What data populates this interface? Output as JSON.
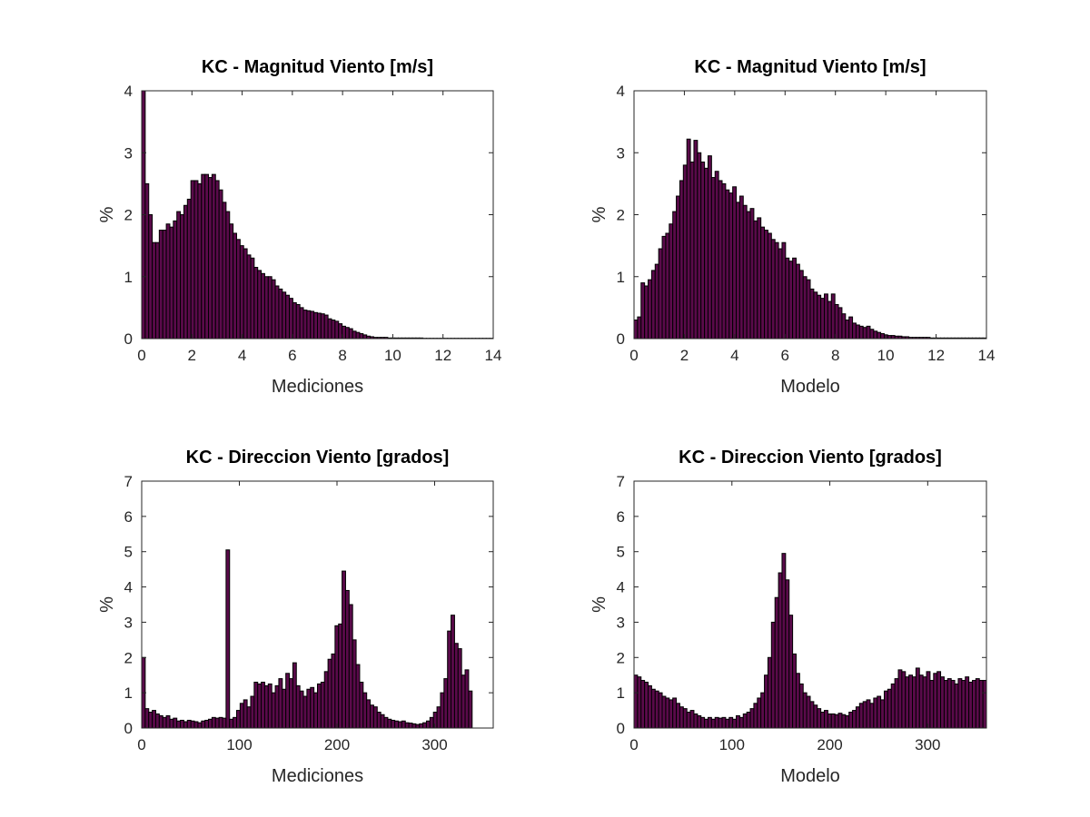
{
  "figure": {
    "bar_color": "#5a0a4a",
    "edge_color": "#000000"
  },
  "chart_data": [
    {
      "type": "bar",
      "title": "KC - Magnitud Viento [m/s]",
      "xlabel": "Mediciones",
      "ylabel": "%",
      "xlim": [
        0,
        14
      ],
      "ylim": [
        0,
        4
      ],
      "xticks": [
        0,
        2,
        4,
        6,
        8,
        10,
        12,
        14
      ],
      "yticks": [
        0,
        1,
        2,
        3,
        4
      ],
      "bin_start": 0,
      "bin_width": 0.14,
      "values": [
        4.0,
        2.5,
        2.0,
        1.55,
        1.55,
        1.75,
        1.75,
        1.85,
        1.8,
        1.9,
        2.05,
        2.0,
        2.15,
        2.25,
        2.55,
        2.55,
        2.5,
        2.65,
        2.65,
        2.6,
        2.65,
        2.55,
        2.4,
        2.2,
        2.05,
        1.85,
        1.7,
        1.6,
        1.5,
        1.45,
        1.35,
        1.3,
        1.15,
        1.1,
        1.05,
        1.0,
        1.0,
        0.95,
        0.85,
        0.8,
        0.75,
        0.7,
        0.65,
        0.58,
        0.55,
        0.5,
        0.46,
        0.45,
        0.44,
        0.42,
        0.41,
        0.4,
        0.38,
        0.32,
        0.3,
        0.28,
        0.24,
        0.2,
        0.18,
        0.16,
        0.12,
        0.1,
        0.08,
        0.06,
        0.04,
        0.03,
        0.02,
        0.02,
        0.02,
        0.02,
        0.01,
        0.01,
        0.01,
        0.01,
        0.01,
        0.01,
        0.01,
        0.01,
        0.01,
        0.01,
        0.005,
        0.005,
        0.005,
        0.005,
        0.005,
        0.005,
        0.005,
        0.005,
        0.005,
        0.005,
        0.005,
        0.005,
        0.005,
        0.005,
        0.005,
        0.005,
        0.005,
        0.005,
        0.005,
        0.005
      ]
    },
    {
      "type": "bar",
      "title": "KC - Magnitud Viento [m/s]",
      "xlabel": "Modelo",
      "ylabel": "%",
      "xlim": [
        0,
        14
      ],
      "ylim": [
        0,
        4
      ],
      "xticks": [
        0,
        2,
        4,
        6,
        8,
        10,
        12,
        14
      ],
      "yticks": [
        0,
        1,
        2,
        3,
        4
      ],
      "bin_start": 0,
      "bin_width": 0.14,
      "values": [
        0.3,
        0.35,
        0.9,
        0.85,
        0.95,
        1.1,
        1.2,
        1.45,
        1.65,
        1.7,
        1.85,
        2.05,
        2.3,
        2.55,
        2.8,
        3.22,
        2.85,
        3.2,
        3.0,
        2.85,
        2.75,
        2.95,
        2.6,
        2.7,
        2.55,
        2.5,
        2.4,
        2.35,
        2.45,
        2.2,
        2.3,
        2.15,
        2.05,
        2.1,
        1.9,
        1.95,
        1.8,
        1.75,
        1.7,
        1.6,
        1.55,
        1.45,
        1.55,
        1.3,
        1.25,
        1.3,
        1.2,
        1.1,
        1.0,
        0.95,
        0.8,
        0.75,
        0.7,
        0.65,
        0.72,
        0.6,
        0.72,
        0.55,
        0.5,
        0.4,
        0.3,
        0.35,
        0.25,
        0.22,
        0.2,
        0.18,
        0.2,
        0.15,
        0.12,
        0.1,
        0.08,
        0.06,
        0.05,
        0.05,
        0.04,
        0.04,
        0.03,
        0.03,
        0.02,
        0.02,
        0.02,
        0.02,
        0.02,
        0.02,
        0.01,
        0.01,
        0.01,
        0.01,
        0.01,
        0.01,
        0.01,
        0.01,
        0.01,
        0.01,
        0.01,
        0.01,
        0.01,
        0.01,
        0.01,
        0.01
      ]
    },
    {
      "type": "bar",
      "title": "KC - Direccion Viento [grados]",
      "xlabel": "Mediciones",
      "ylabel": "%",
      "xlim": [
        0,
        360
      ],
      "ylim": [
        0,
        7
      ],
      "xticks": [
        0,
        100,
        200,
        300
      ],
      "yticks": [
        0,
        1,
        2,
        3,
        4,
        5,
        6,
        7
      ],
      "bin_start": 0,
      "bin_width": 3.6,
      "values": [
        2.0,
        0.55,
        0.45,
        0.5,
        0.4,
        0.35,
        0.3,
        0.35,
        0.25,
        0.28,
        0.2,
        0.22,
        0.18,
        0.22,
        0.2,
        0.18,
        0.15,
        0.2,
        0.22,
        0.25,
        0.3,
        0.28,
        0.3,
        0.28,
        5.05,
        0.25,
        0.3,
        0.5,
        0.7,
        0.8,
        0.6,
        0.9,
        1.3,
        1.25,
        1.3,
        1.2,
        1.25,
        1.0,
        1.2,
        1.4,
        1.1,
        1.55,
        1.4,
        1.85,
        1.2,
        1.05,
        0.9,
        1.1,
        1.15,
        1.0,
        1.25,
        1.3,
        1.6,
        1.95,
        2.1,
        2.9,
        2.95,
        4.45,
        3.9,
        3.5,
        2.5,
        1.8,
        1.3,
        1.0,
        0.8,
        0.65,
        0.6,
        0.45,
        0.38,
        0.3,
        0.25,
        0.22,
        0.2,
        0.18,
        0.2,
        0.15,
        0.14,
        0.12,
        0.1,
        0.12,
        0.15,
        0.2,
        0.3,
        0.45,
        0.6,
        1.0,
        1.4,
        2.75,
        3.2,
        2.4,
        2.25,
        1.5,
        1.65,
        1.05
      ]
    },
    {
      "type": "bar",
      "title": "KC - Direccion Viento [grados]",
      "xlabel": "Modelo",
      "ylabel": "%",
      "xlim": [
        0,
        360
      ],
      "ylim": [
        0,
        7
      ],
      "xticks": [
        0,
        100,
        200,
        300
      ],
      "yticks": [
        0,
        1,
        2,
        3,
        4,
        5,
        6,
        7
      ],
      "bin_start": 0,
      "bin_width": 3.6,
      "values": [
        1.5,
        1.45,
        1.35,
        1.3,
        1.2,
        1.1,
        1.05,
        1.0,
        0.9,
        0.85,
        0.8,
        0.85,
        0.7,
        0.6,
        0.55,
        0.45,
        0.5,
        0.4,
        0.35,
        0.3,
        0.25,
        0.3,
        0.25,
        0.3,
        0.28,
        0.3,
        0.25,
        0.3,
        0.25,
        0.35,
        0.3,
        0.4,
        0.45,
        0.55,
        0.7,
        0.85,
        1.0,
        1.5,
        2.0,
        3.0,
        3.7,
        4.4,
        4.95,
        4.2,
        3.2,
        2.1,
        1.55,
        1.25,
        1.0,
        0.9,
        0.75,
        0.65,
        0.55,
        0.45,
        0.5,
        0.4,
        0.4,
        0.38,
        0.42,
        0.38,
        0.35,
        0.45,
        0.5,
        0.6,
        0.7,
        0.75,
        0.8,
        0.7,
        0.85,
        0.9,
        0.8,
        1.05,
        1.1,
        1.25,
        1.4,
        1.65,
        1.6,
        1.45,
        1.5,
        1.45,
        1.7,
        1.5,
        1.45,
        1.6,
        1.35,
        1.55,
        1.6,
        1.45,
        1.35,
        1.4,
        1.35,
        1.25,
        1.4,
        1.35,
        1.45,
        1.3,
        1.35,
        1.4,
        1.35,
        1.35
      ]
    }
  ]
}
